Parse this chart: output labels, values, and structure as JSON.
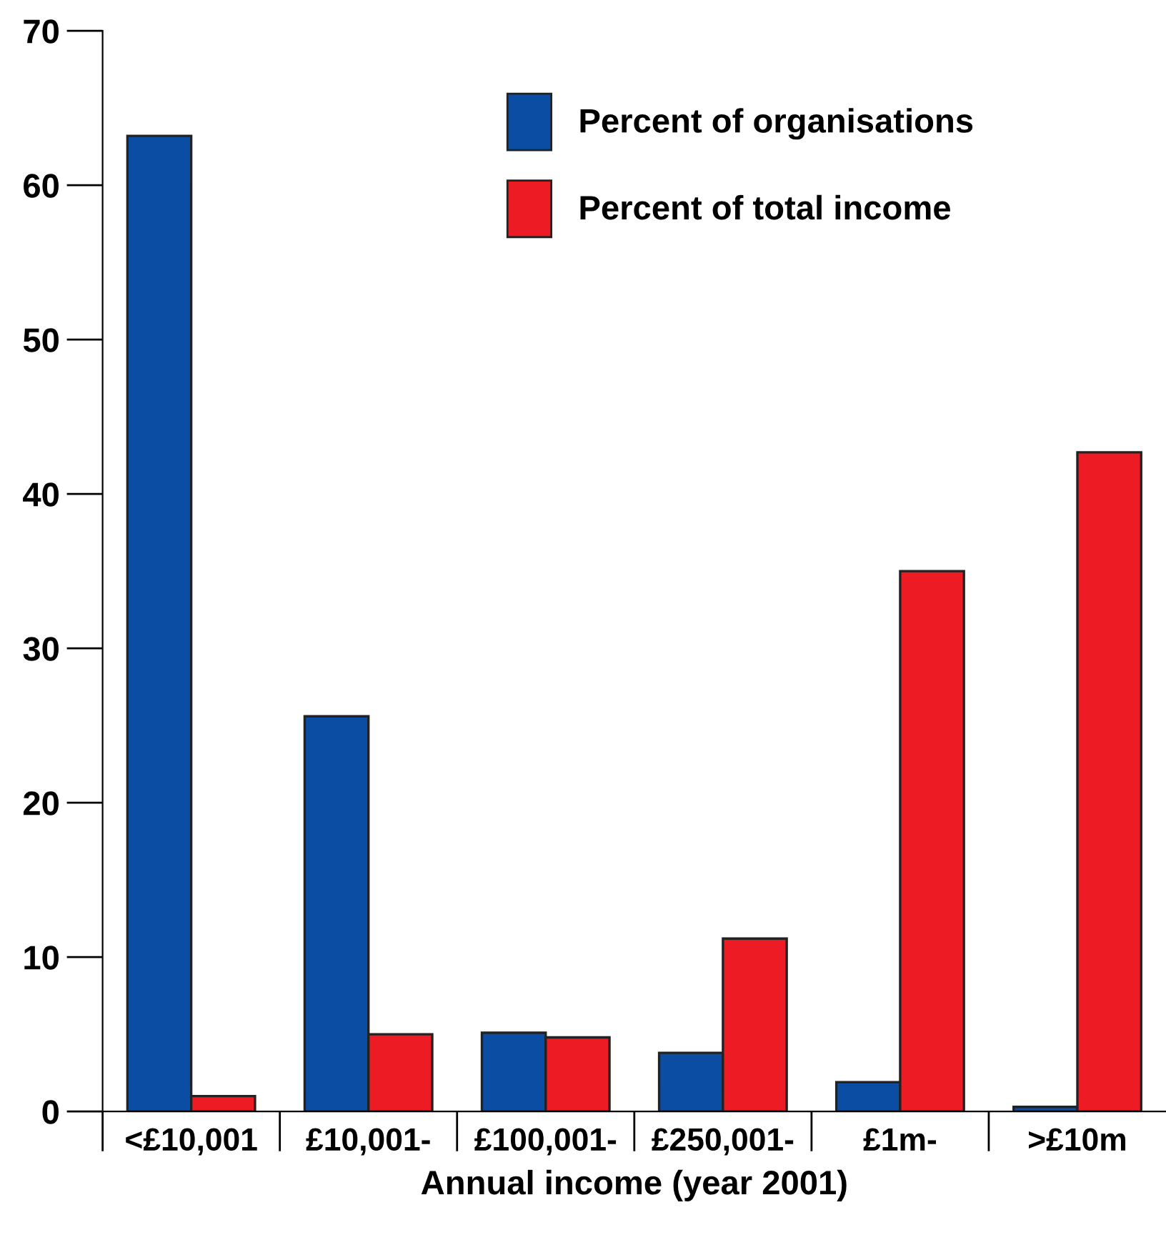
{
  "chart_data": {
    "type": "bar",
    "xlabel": "Annual income (year 2001)",
    "categories": [
      "<£10,001",
      "£10,001-",
      "£100,001-",
      "£250,001-",
      "£1m-",
      ">£10m"
    ],
    "series": [
      {
        "name": "Percent of organisations",
        "color": "#0a4da2",
        "values": [
          63.2,
          25.6,
          5.1,
          3.8,
          1.9,
          0.3
        ]
      },
      {
        "name": "Percent of total income",
        "color": "#ed1c24",
        "values": [
          1.0,
          5.0,
          4.8,
          11.2,
          35.0,
          42.7
        ]
      }
    ],
    "ylim": [
      0,
      70
    ],
    "yticks": [
      0,
      10,
      20,
      30,
      40,
      50,
      60,
      70
    ],
    "grid": false,
    "legend": "top"
  }
}
